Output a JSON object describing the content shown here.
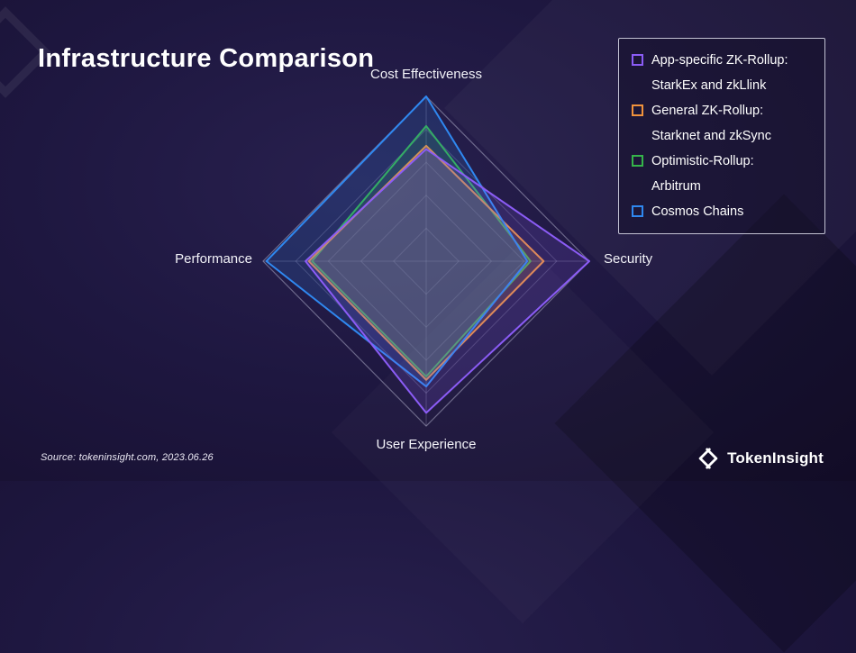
{
  "page": {
    "title": "Infrastructure Comparison",
    "source": "Source: tokeninsight.com, 2023.06.26",
    "brand": "TokenInsight"
  },
  "legend": {
    "items": [
      {
        "line1": "App-specific ZK-Rollup:",
        "line2": "StarkEx and zkLlink",
        "color": "#8b5cf6"
      },
      {
        "line1": "General ZK-Rollup:",
        "line2": "Starknet and zkSync",
        "color": "#f0923c"
      },
      {
        "line1": "Optimistic-Rollup:",
        "line2": "Arbitrum",
        "color": "#35b44a"
      },
      {
        "line1": "Cosmos Chains",
        "line2": "",
        "color": "#2f88f0"
      }
    ]
  },
  "chart_data": {
    "type": "radar",
    "title": "Infrastructure Comparison",
    "categories": [
      "Cost Effectiveness",
      "Security",
      "User Experience",
      "Performance"
    ],
    "max": 5,
    "rings": 5,
    "grid": true,
    "legend_position": "top-right",
    "series": [
      {
        "name": "App-specific ZK-Rollup: StarkEx and zkLlink",
        "color": "#8b5cf6",
        "values": [
          3.4,
          5.0,
          4.6,
          3.7
        ]
      },
      {
        "name": "General ZK-Rollup: Starknet and zkSync",
        "color": "#f0923c",
        "values": [
          3.5,
          3.6,
          3.6,
          3.6
        ]
      },
      {
        "name": "Optimistic-Rollup: Arbitrum",
        "color": "#35b44a",
        "values": [
          4.1,
          3.2,
          3.5,
          3.5
        ]
      },
      {
        "name": "Cosmos Chains",
        "color": "#2f88f0",
        "values": [
          5.0,
          3.1,
          3.8,
          4.9
        ]
      }
    ]
  }
}
